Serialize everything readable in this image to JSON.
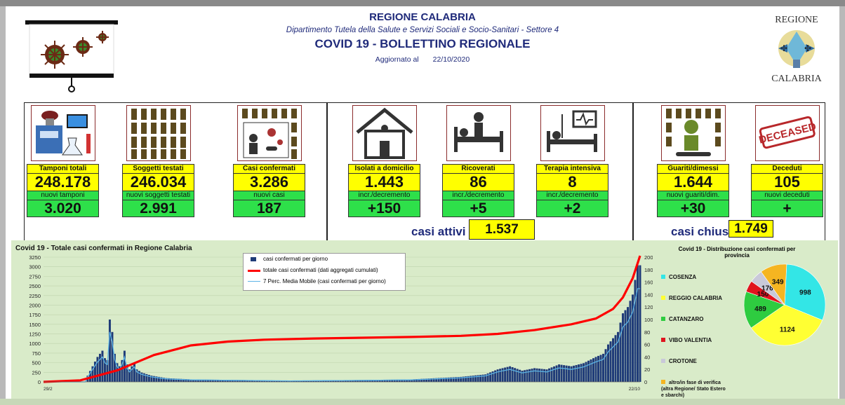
{
  "header": {
    "region": "REGIONE CALABRIA",
    "department": "Dipartimento Tutela della Salute e Servizi Sociali e Socio-Sanitari - Settore 4",
    "bulletin": "COVID 19 - BOLLETTINO REGIONALE",
    "updated_label": "Aggiornato al",
    "updated_date": "22/10/2020",
    "logo_top": "REGIONE",
    "logo_bottom": "CALABRIA"
  },
  "cards": [
    {
      "label": "Tamponi totali",
      "value": "248.178",
      "sub_label": "nuovi tamponi",
      "sub_value": "3.020",
      "icon": "lab-icon"
    },
    {
      "label": "Soggetti testati",
      "value": "246.034",
      "sub_label": "nuovi soggetti testati",
      "sub_value": "2.991",
      "icon": "people-icon"
    },
    {
      "label": "Casi confermati",
      "value": "3.286",
      "sub_label": "nuovi casi",
      "sub_value": "187",
      "icon": "virus-person-icon"
    },
    {
      "label": "Isolati a domicilio",
      "value": "1.443",
      "sub_label": "incr./decremento",
      "sub_value": "+150",
      "icon": "house-icon"
    },
    {
      "label": "Ricoverati",
      "value": "86",
      "sub_label": "incr./decremento",
      "sub_value": "+5",
      "icon": "hospital-bed-icon"
    },
    {
      "label": "Terapia intensiva",
      "value": "8",
      "sub_label": "incr./decremento",
      "sub_value": "+2",
      "icon": "icu-icon"
    },
    {
      "label": "Guariti/dimessi",
      "value": "1.644",
      "sub_label": "nuovi guariti/dim.",
      "sub_value": "+30",
      "icon": "recovered-icon"
    },
    {
      "label": "Deceduti",
      "value": "105",
      "sub_label": "nuovi deceduti",
      "sub_value": "+",
      "icon": "deceased-stamp-icon"
    }
  ],
  "summary": {
    "active_label": "casi attivi",
    "active_value": "1.537",
    "closed_label": "casi chiusi",
    "closed_value": "1.749"
  },
  "chart_data": [
    {
      "type": "bar",
      "title": "Covid 19 - Totale casi confermati in Regione Calabria",
      "ylim": [
        0,
        3250
      ],
      "y2lim": [
        0,
        200
      ],
      "yticks": [
        0,
        250,
        500,
        750,
        1000,
        1250,
        1500,
        1750,
        2000,
        2250,
        2500,
        2750,
        3000,
        3250
      ],
      "y2ticks": [
        0,
        20,
        40,
        60,
        80,
        100,
        120,
        140,
        160,
        180,
        200
      ],
      "x_start": "29/2",
      "x_end": "22/10",
      "series": [
        {
          "name": "casi confermati per giorno",
          "color": "#1f3b78",
          "kind": "bar"
        },
        {
          "name": "totale casi confermati (dati aggregati cumulati)",
          "color": "#ff0000",
          "kind": "line"
        },
        {
          "name": "7 Perc. Media Mobile (casi confermati per giorno)",
          "color": "#5bb3e6",
          "kind": "line"
        }
      ],
      "cumulative_points": [
        [
          0,
          0
        ],
        [
          15,
          40
        ],
        [
          30,
          300
        ],
        [
          45,
          700
        ],
        [
          60,
          950
        ],
        [
          75,
          1050
        ],
        [
          90,
          1100
        ],
        [
          110,
          1130
        ],
        [
          130,
          1150
        ],
        [
          150,
          1170
        ],
        [
          170,
          1200
        ],
        [
          185,
          1250
        ],
        [
          200,
          1350
        ],
        [
          215,
          1500
        ],
        [
          225,
          1650
        ],
        [
          232,
          1900
        ],
        [
          236,
          2200
        ],
        [
          240,
          2700
        ],
        [
          243,
          3286
        ]
      ],
      "daily_points": [
        [
          18,
          10
        ],
        [
          20,
          25
        ],
        [
          22,
          40
        ],
        [
          24,
          50
        ],
        [
          25,
          38
        ],
        [
          26,
          35
        ],
        [
          27,
          100
        ],
        [
          28,
          80
        ],
        [
          29,
          45
        ],
        [
          30,
          30
        ],
        [
          31,
          25
        ],
        [
          32,
          35
        ],
        [
          33,
          50
        ],
        [
          34,
          28
        ],
        [
          35,
          20
        ],
        [
          37,
          30
        ],
        [
          38,
          20
        ],
        [
          40,
          15
        ],
        [
          44,
          10
        ],
        [
          50,
          6
        ],
        [
          60,
          4
        ],
        [
          80,
          3
        ],
        [
          100,
          2
        ],
        [
          130,
          3
        ],
        [
          150,
          4
        ],
        [
          170,
          8
        ],
        [
          180,
          12
        ],
        [
          185,
          20
        ],
        [
          190,
          25
        ],
        [
          195,
          18
        ],
        [
          200,
          22
        ],
        [
          205,
          20
        ],
        [
          210,
          28
        ],
        [
          215,
          25
        ],
        [
          220,
          30
        ],
        [
          225,
          40
        ],
        [
          228,
          45
        ],
        [
          230,
          60
        ],
        [
          232,
          70
        ],
        [
          234,
          80
        ],
        [
          236,
          110
        ],
        [
          238,
          120
        ],
        [
          240,
          140
        ],
        [
          242,
          187
        ]
      ]
    },
    {
      "type": "pie",
      "title": "Covid 19 - Distribuzione casi confermati per provincia",
      "slices": [
        {
          "name": "COSENZA",
          "value": 998,
          "color": "#33e6e6"
        },
        {
          "name": "REGGIO CALABRIA",
          "value": 1124,
          "color": "#ffff33"
        },
        {
          "name": "CATANZARO",
          "value": 489,
          "color": "#2ecc40"
        },
        {
          "name": "VIBO VALENTIA",
          "value": 150,
          "color": "#e0141e"
        },
        {
          "name": "CROTONE",
          "value": 176,
          "color": "#c9c9d9"
        },
        {
          "name": "altro/in fase di verifica (altra Regione/ Stato Estero e sbarchi)",
          "value": 349,
          "color": "#f5b521"
        }
      ]
    }
  ]
}
